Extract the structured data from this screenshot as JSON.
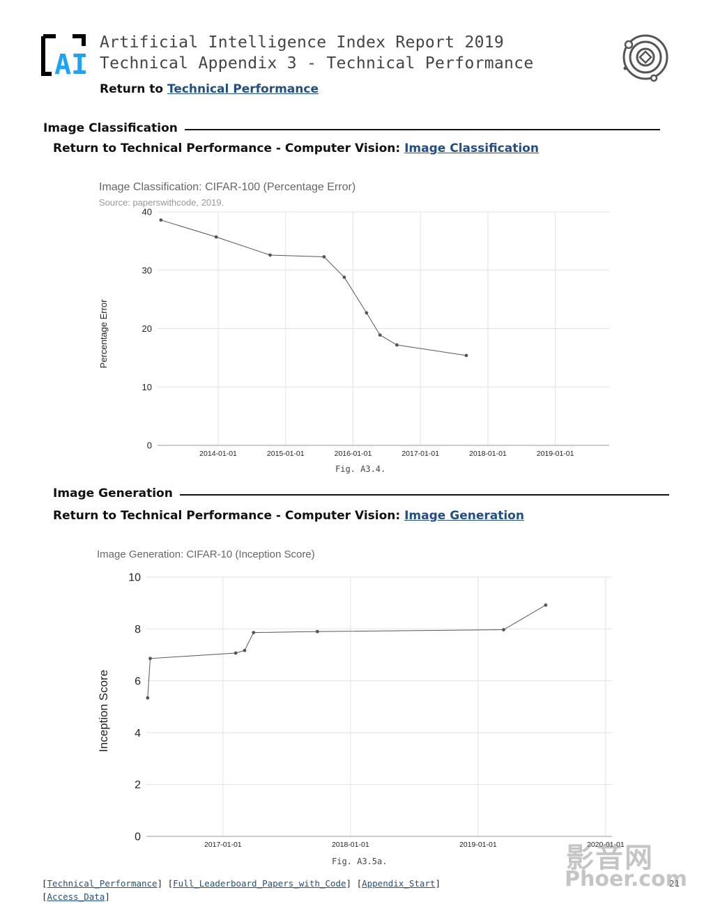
{
  "header": {
    "title_line1": "Artificial Intelligence Index Report 2019",
    "title_line2": "Technical Appendix 3 - Technical Performance",
    "return_prefix": "Return to ",
    "return_link": "Technical Performance",
    "logo_text": "AI",
    "icon": "orbit-emblem-icon"
  },
  "section1": {
    "heading": "Image Classification",
    "return_prefix": "Return to Technical Performance - Computer Vision: ",
    "return_link": "Image Classification",
    "caption": "Fig. A3.4."
  },
  "section2": {
    "heading": "Image Generation",
    "return_prefix": "Return to Technical Performance - Computer Vision: ",
    "return_link": "Image Generation",
    "caption": "Fig. A3.5a."
  },
  "footer": {
    "link1": "Technical_Performance",
    "link2": "Full_Leaderboard_Papers_with_Code",
    "link3": "Appendix_Start",
    "link4": "Access_Data",
    "page_number": "21"
  },
  "watermark": {
    "line1": "影音网",
    "line2": "Phoer.com"
  },
  "chart_data": [
    {
      "type": "line",
      "title": "Image Classification: CIFAR-100 (Percentage Error)",
      "subtitle": "Source: paperswithcode, 2019.",
      "xlabel": "",
      "ylabel": "Percentage Error",
      "ylim": [
        0,
        40
      ],
      "yticks": [
        "0",
        "10",
        "20",
        "30",
        "40"
      ],
      "xticks": [
        "2014-01-01",
        "2015-01-01",
        "2016-01-01",
        "2017-01-01",
        "2018-01-01",
        "2019-01-01"
      ],
      "xlim_years": [
        2013.1,
        2019.8
      ],
      "grid": true,
      "color": "#555555",
      "points": [
        {
          "x": 2013.15,
          "y": 38.6
        },
        {
          "x": 2013.97,
          "y": 35.7
        },
        {
          "x": 2014.77,
          "y": 32.6
        },
        {
          "x": 2015.57,
          "y": 32.3
        },
        {
          "x": 2015.87,
          "y": 28.8
        },
        {
          "x": 2016.2,
          "y": 22.7
        },
        {
          "x": 2016.4,
          "y": 18.9
        },
        {
          "x": 2016.65,
          "y": 17.2
        },
        {
          "x": 2017.68,
          "y": 15.4
        }
      ]
    },
    {
      "type": "line",
      "title": "Image Generation: CIFAR-10 (Inception Score)",
      "xlabel": "",
      "ylabel": "Inception Score",
      "ylim": [
        0,
        10
      ],
      "yticks": [
        "0",
        "2",
        "4",
        "6",
        "8",
        "10"
      ],
      "xticks": [
        "2017-01-01",
        "2018-01-01",
        "2019-01-01",
        "2020-01-01"
      ],
      "xlim_years": [
        2016.4,
        2020.05
      ],
      "grid": true,
      "color": "#555555",
      "points": [
        {
          "x": 2016.41,
          "y": 5.34
        },
        {
          "x": 2016.43,
          "y": 6.86
        },
        {
          "x": 2017.1,
          "y": 7.07
        },
        {
          "x": 2017.17,
          "y": 7.17
        },
        {
          "x": 2017.24,
          "y": 7.86
        },
        {
          "x": 2017.74,
          "y": 7.9
        },
        {
          "x": 2019.2,
          "y": 7.97
        },
        {
          "x": 2019.53,
          "y": 8.92
        }
      ]
    }
  ]
}
